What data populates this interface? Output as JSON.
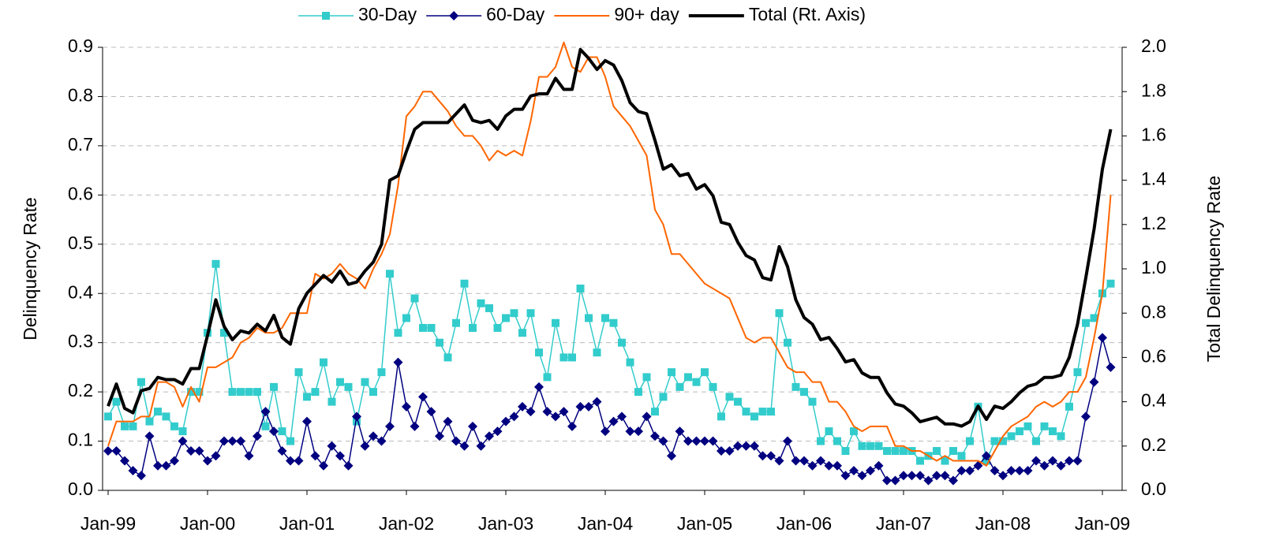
{
  "chart_data": {
    "type": "line",
    "y_label": "Delinquency Rate",
    "y2_label": "Total Delinquency Rate",
    "categories": [
      "Jan-99",
      null,
      null,
      null,
      null,
      null,
      null,
      null,
      null,
      null,
      null,
      null,
      "Jan-00",
      null,
      null,
      null,
      null,
      null,
      null,
      null,
      null,
      null,
      null,
      null,
      "Jan-01",
      null,
      null,
      null,
      null,
      null,
      null,
      null,
      null,
      null,
      null,
      null,
      "Jan-02",
      null,
      null,
      null,
      null,
      null,
      null,
      null,
      null,
      null,
      null,
      null,
      "Jan-03",
      null,
      null,
      null,
      null,
      null,
      null,
      null,
      null,
      null,
      null,
      null,
      "Jan-04",
      null,
      null,
      null,
      null,
      null,
      null,
      null,
      null,
      null,
      null,
      null,
      "Jan-05",
      null,
      null,
      null,
      null,
      null,
      null,
      null,
      null,
      null,
      null,
      null,
      "Jan-06",
      null,
      null,
      null,
      null,
      null,
      null,
      null,
      null,
      null,
      null,
      null,
      "Jan-07",
      null,
      null,
      null,
      null,
      null,
      null,
      null,
      null,
      null,
      null,
      null,
      "Jan-08",
      null,
      null,
      null,
      null,
      null,
      null,
      null,
      null,
      null,
      null,
      null,
      "Jan-09",
      null
    ],
    "ylim": [
      0,
      0.9
    ],
    "yticks": [
      {
        "value": 0,
        "label": "0.0"
      },
      0.1,
      0.2,
      0.3,
      0.4,
      0.5,
      0.6,
      0.7,
      0.8,
      0.9
    ],
    "y2lim": [
      0,
      2
    ],
    "y2ticks": [
      {
        "value": 0,
        "label": "0.0"
      },
      0.2,
      0.4,
      0.6,
      0.8,
      {
        "value": 1,
        "label": "1.0"
      },
      1.2,
      1.4,
      1.6,
      1.8,
      {
        "value": 2,
        "label": "2.0"
      }
    ],
    "grid": true,
    "legend": "top",
    "series": [
      {
        "name": "30-Day",
        "color": "#33cccc",
        "marker": "square",
        "width": 1.5,
        "values": [
          0.15,
          0.18,
          0.13,
          0.13,
          0.22,
          0.14,
          0.16,
          0.15,
          0.13,
          0.12,
          0.2,
          0.2,
          0.32,
          0.46,
          0.32,
          0.2,
          0.2,
          0.2,
          0.2,
          0.13,
          0.21,
          0.12,
          0.1,
          0.24,
          0.19,
          0.2,
          0.26,
          0.18,
          0.22,
          0.21,
          0.14,
          0.22,
          0.2,
          0.24,
          0.44,
          0.32,
          0.35,
          0.39,
          0.33,
          0.33,
          0.3,
          0.27,
          0.34,
          0.42,
          0.33,
          0.38,
          0.37,
          0.33,
          0.35,
          0.36,
          0.32,
          0.36,
          0.28,
          0.23,
          0.34,
          0.27,
          0.27,
          0.41,
          0.35,
          0.28,
          0.35,
          0.34,
          0.3,
          0.26,
          0.2,
          0.23,
          0.16,
          0.19,
          0.24,
          0.21,
          0.23,
          0.22,
          0.24,
          0.21,
          0.15,
          0.19,
          0.18,
          0.16,
          0.15,
          0.16,
          0.16,
          0.36,
          0.3,
          0.21,
          0.2,
          0.18,
          0.1,
          0.12,
          0.1,
          0.08,
          0.12,
          0.09,
          0.09,
          0.09,
          0.08,
          0.08,
          0.08,
          0.08,
          0.06,
          0.07,
          0.08,
          0.06,
          0.08,
          0.07,
          0.1,
          0.17,
          0.06,
          0.1,
          0.1,
          0.11,
          0.12,
          0.13,
          0.1,
          0.13,
          0.12,
          0.11,
          0.17,
          0.24,
          0.34,
          0.35,
          0.4,
          0.42
        ]
      },
      {
        "name": "60-Day",
        "color": "#000080",
        "marker": "diamond",
        "width": 1.5,
        "values": [
          0.08,
          0.08,
          0.06,
          0.04,
          0.03,
          0.11,
          0.05,
          0.05,
          0.06,
          0.1,
          0.08,
          0.08,
          0.06,
          0.07,
          0.1,
          0.1,
          0.1,
          0.07,
          0.11,
          0.16,
          0.12,
          0.08,
          0.06,
          0.06,
          0.14,
          0.07,
          0.05,
          0.09,
          0.07,
          0.05,
          0.15,
          0.09,
          0.11,
          0.1,
          0.13,
          0.26,
          0.17,
          0.13,
          0.19,
          0.16,
          0.11,
          0.14,
          0.1,
          0.09,
          0.13,
          0.09,
          0.11,
          0.12,
          0.14,
          0.15,
          0.17,
          0.16,
          0.21,
          0.16,
          0.15,
          0.16,
          0.13,
          0.17,
          0.17,
          0.18,
          0.12,
          0.14,
          0.15,
          0.12,
          0.12,
          0.15,
          0.11,
          0.1,
          0.07,
          0.12,
          0.1,
          0.1,
          0.1,
          0.1,
          0.08,
          0.08,
          0.09,
          0.09,
          0.09,
          0.07,
          0.07,
          0.06,
          0.1,
          0.06,
          0.06,
          0.05,
          0.06,
          0.05,
          0.05,
          0.03,
          0.04,
          0.03,
          0.04,
          0.05,
          0.02,
          0.02,
          0.03,
          0.03,
          0.03,
          0.02,
          0.03,
          0.03,
          0.02,
          0.04,
          0.04,
          0.05,
          0.07,
          0.04,
          0.03,
          0.04,
          0.04,
          0.04,
          0.06,
          0.05,
          0.06,
          0.05,
          0.06,
          0.06,
          0.15,
          0.22,
          0.31,
          0.25
        ]
      },
      {
        "name": "90+ day",
        "color": "#ff6600",
        "marker": "none",
        "width": 2,
        "values": [
          0.09,
          0.14,
          0.14,
          0.14,
          0.15,
          0.15,
          0.22,
          0.22,
          0.21,
          0.17,
          0.21,
          0.18,
          0.25,
          0.25,
          0.26,
          0.27,
          0.3,
          0.31,
          0.33,
          0.32,
          0.32,
          0.33,
          0.36,
          0.36,
          0.36,
          0.44,
          0.43,
          0.44,
          0.46,
          0.44,
          0.43,
          0.41,
          0.45,
          0.48,
          0.52,
          0.62,
          0.76,
          0.78,
          0.81,
          0.81,
          0.79,
          0.77,
          0.74,
          0.72,
          0.72,
          0.7,
          0.67,
          0.69,
          0.68,
          0.69,
          0.68,
          0.75,
          0.84,
          0.84,
          0.86,
          0.91,
          0.86,
          0.85,
          0.88,
          0.88,
          0.84,
          0.78,
          0.76,
          0.74,
          0.71,
          0.68,
          0.57,
          0.54,
          0.48,
          0.48,
          0.46,
          0.44,
          0.42,
          0.41,
          0.4,
          0.39,
          0.35,
          0.31,
          0.3,
          0.31,
          0.31,
          0.28,
          0.25,
          0.24,
          0.24,
          0.22,
          0.22,
          0.18,
          0.18,
          0.16,
          0.13,
          0.12,
          0.13,
          0.13,
          0.13,
          0.09,
          0.09,
          0.08,
          0.08,
          0.07,
          0.06,
          0.07,
          0.06,
          0.06,
          0.06,
          0.06,
          0.05,
          0.08,
          0.11,
          0.13,
          0.14,
          0.15,
          0.17,
          0.18,
          0.17,
          0.18,
          0.2,
          0.2,
          0.23,
          0.31,
          0.4,
          0.6
        ]
      },
      {
        "name": "Total (Rt. Axis)",
        "color": "#000000",
        "marker": "none",
        "width": 4,
        "axis": "y2",
        "values": [
          0.38,
          0.48,
          0.37,
          0.35,
          0.45,
          0.46,
          0.51,
          0.5,
          0.5,
          0.48,
          0.55,
          0.55,
          0.7,
          0.86,
          0.74,
          0.68,
          0.72,
          0.71,
          0.75,
          0.72,
          0.79,
          0.69,
          0.66,
          0.82,
          0.89,
          0.93,
          0.97,
          0.94,
          0.99,
          0.93,
          0.94,
          0.99,
          1.03,
          1.11,
          1.4,
          1.42,
          1.53,
          1.63,
          1.66,
          1.66,
          1.66,
          1.66,
          1.7,
          1.74,
          1.67,
          1.66,
          1.67,
          1.63,
          1.69,
          1.72,
          1.72,
          1.78,
          1.79,
          1.79,
          1.86,
          1.81,
          1.81,
          1.99,
          1.95,
          1.9,
          1.94,
          1.92,
          1.85,
          1.75,
          1.71,
          1.7,
          1.58,
          1.45,
          1.47,
          1.42,
          1.43,
          1.36,
          1.38,
          1.33,
          1.21,
          1.2,
          1.12,
          1.06,
          1.04,
          0.96,
          0.95,
          1.1,
          1.01,
          0.86,
          0.78,
          0.75,
          0.68,
          0.69,
          0.64,
          0.58,
          0.59,
          0.53,
          0.51,
          0.51,
          0.44,
          0.39,
          0.38,
          0.35,
          0.31,
          0.32,
          0.33,
          0.3,
          0.3,
          0.29,
          0.31,
          0.38,
          0.32,
          0.38,
          0.37,
          0.4,
          0.44,
          0.47,
          0.48,
          0.51,
          0.51,
          0.52,
          0.6,
          0.75,
          0.96,
          1.18,
          1.45,
          1.63
        ]
      }
    ]
  }
}
